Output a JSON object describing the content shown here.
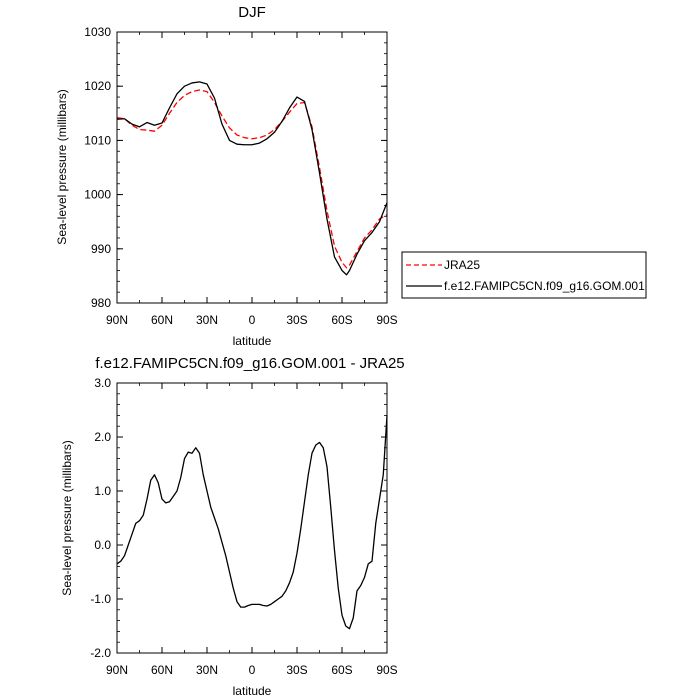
{
  "chart_data": [
    {
      "type": "line",
      "title": "DJF",
      "xlabel": "latitude",
      "ylabel": "Sea-level pressure (millibars)",
      "xlim": [
        90,
        -90
      ],
      "ylim": [
        980,
        1030
      ],
      "x_ticks": [
        90,
        60,
        30,
        0,
        -30,
        -60,
        -90
      ],
      "x_tick_labels": [
        "90N",
        "60N",
        "30N",
        "0",
        "30S",
        "60S",
        "90S"
      ],
      "y_ticks": [
        980,
        990,
        1000,
        1010,
        1020,
        1030
      ],
      "y_tick_labels": [
        "980",
        "990",
        "1000",
        "1010",
        "1020",
        "1030"
      ],
      "legend_position": "right-outside",
      "series": [
        {
          "name": "JRA25",
          "color": "#ff0000",
          "dash": "dashed",
          "x": [
            90,
            85,
            80,
            75,
            70,
            65,
            60,
            55,
            50,
            45,
            40,
            35,
            30,
            25,
            20,
            15,
            10,
            5,
            0,
            -5,
            -10,
            -15,
            -20,
            -25,
            -30,
            -35,
            -40,
            -45,
            -50,
            -55,
            -60,
            -63,
            -65,
            -70,
            -75,
            -80,
            -85,
            -90
          ],
          "values": [
            1014.2,
            1014.0,
            1012.8,
            1012.0,
            1011.9,
            1011.7,
            1012.8,
            1015.0,
            1017.0,
            1018.3,
            1019.0,
            1019.3,
            1019.0,
            1017.0,
            1014.5,
            1012.3,
            1011.0,
            1010.5,
            1010.3,
            1010.5,
            1011.0,
            1012.0,
            1013.5,
            1015.2,
            1016.8,
            1017.0,
            1012.5,
            1005.0,
            997.0,
            990.5,
            987.5,
            986.5,
            987.0,
            989.5,
            992.0,
            993.5,
            995.5,
            996.3
          ]
        },
        {
          "name": "f.e12.FAMIPC5CN.f09_g16.GOM.001",
          "color": "#000000",
          "dash": "solid",
          "x": [
            90,
            85,
            80,
            75,
            70,
            65,
            60,
            55,
            50,
            45,
            40,
            35,
            30,
            25,
            20,
            15,
            10,
            5,
            0,
            -5,
            -10,
            -15,
            -20,
            -25,
            -30,
            -35,
            -40,
            -45,
            -50,
            -55,
            -60,
            -63,
            -65,
            -70,
            -75,
            -80,
            -85,
            -90
          ],
          "values": [
            1013.9,
            1014.0,
            1013.0,
            1012.5,
            1013.3,
            1012.8,
            1013.2,
            1016.0,
            1018.6,
            1020.0,
            1020.6,
            1020.8,
            1020.4,
            1017.8,
            1013.0,
            1010.0,
            1009.3,
            1009.2,
            1009.2,
            1009.5,
            1010.3,
            1011.5,
            1013.5,
            1016.0,
            1018.0,
            1017.2,
            1012.0,
            1004.0,
            995.5,
            988.5,
            986.0,
            985.2,
            986.0,
            989.0,
            991.5,
            993.0,
            995.0,
            998.5
          ]
        }
      ]
    },
    {
      "type": "line",
      "title": "f.e12.FAMIPC5CN.f09_g16.GOM.001 - JRA25",
      "xlabel": "latitude",
      "ylabel": "Sea-level pressure (millibars)",
      "xlim": [
        90,
        -90
      ],
      "ylim": [
        -2.0,
        3.0
      ],
      "x_ticks": [
        90,
        60,
        30,
        0,
        -30,
        -60,
        -90
      ],
      "x_tick_labels": [
        "90N",
        "60N",
        "30N",
        "0",
        "30S",
        "60S",
        "90S"
      ],
      "y_ticks": [
        -2.0,
        -1.0,
        0.0,
        1.0,
        2.0,
        3.0
      ],
      "y_tick_labels": [
        "-2.0",
        "-1.0",
        "0.0",
        "1.0",
        "2.0",
        "3.0"
      ],
      "series": [
        {
          "color": "#000000",
          "dash": "solid",
          "x": [
            90,
            87.5,
            85,
            82.5,
            80,
            77.5,
            75,
            72.5,
            70,
            67.5,
            65,
            62.5,
            60,
            57.5,
            55,
            52.5,
            50,
            47.5,
            45,
            42.5,
            40,
            37.5,
            35,
            32.5,
            30,
            27.5,
            25,
            22.5,
            20,
            17.5,
            15,
            12.5,
            10,
            7.5,
            5,
            2.5,
            0,
            -2.5,
            -5,
            -7.5,
            -10,
            -12.5,
            -15,
            -17.5,
            -20,
            -22.5,
            -25,
            -27.5,
            -30,
            -32.5,
            -35,
            -37.5,
            -40,
            -42.5,
            -45,
            -47.5,
            -50,
            -52.5,
            -55,
            -57.5,
            -60,
            -62.5,
            -65,
            -67.5,
            -70,
            -72.5,
            -75,
            -77.5,
            -80,
            -82.5,
            -85,
            -87.5,
            -90
          ],
          "values": [
            -0.35,
            -0.3,
            -0.2,
            0.0,
            0.2,
            0.4,
            0.45,
            0.55,
            0.85,
            1.2,
            1.3,
            1.15,
            0.85,
            0.78,
            0.8,
            0.9,
            1.0,
            1.25,
            1.6,
            1.72,
            1.7,
            1.8,
            1.7,
            1.3,
            1.0,
            0.7,
            0.5,
            0.3,
            0.05,
            -0.2,
            -0.5,
            -0.8,
            -1.05,
            -1.15,
            -1.15,
            -1.12,
            -1.1,
            -1.1,
            -1.1,
            -1.12,
            -1.13,
            -1.1,
            -1.05,
            -1.0,
            -0.95,
            -0.85,
            -0.7,
            -0.5,
            -0.15,
            0.3,
            0.8,
            1.3,
            1.7,
            1.85,
            1.9,
            1.8,
            1.45,
            0.7,
            -0.1,
            -0.8,
            -1.3,
            -1.5,
            -1.55,
            -1.35,
            -0.85,
            -0.75,
            -0.6,
            -0.35,
            -0.3,
            0.4,
            0.85,
            1.3,
            2.4
          ]
        }
      ]
    }
  ]
}
